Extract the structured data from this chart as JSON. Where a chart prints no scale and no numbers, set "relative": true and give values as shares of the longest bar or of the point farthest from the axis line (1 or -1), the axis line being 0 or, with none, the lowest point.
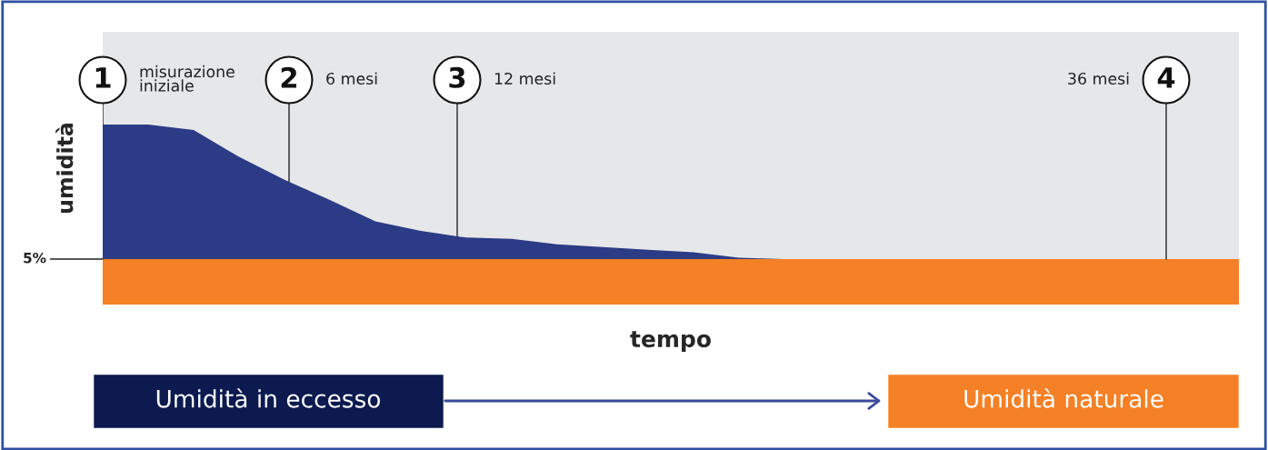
{
  "chart_data": {
    "type": "area",
    "relative": true,
    "xlabel": "tempo",
    "ylabel": "umidità",
    "categories": [
      null,
      null,
      null,
      null,
      null,
      null,
      null,
      null,
      null,
      null,
      null,
      null,
      null,
      null,
      null,
      null,
      null,
      null,
      null,
      null,
      null,
      null,
      null,
      null,
      null,
      null
    ],
    "series": [
      {
        "color": "#2b3b85",
        "values": [
          1.0,
          1.0,
          0.96,
          0.76,
          0.59,
          0.44,
          0.28,
          0.21,
          0.16,
          0.15,
          0.11,
          0.09,
          0.07,
          0.05,
          0.01,
          0,
          0,
          0,
          0,
          0,
          0,
          0,
          0,
          0,
          0,
          0
        ]
      }
    ],
    "bands": [
      {
        "axis": "y",
        "from": -0.34,
        "to": 0,
        "color": "#f58025"
      }
    ],
    "annotations": [
      "1",
      "misurazione\niniziale",
      "2",
      "6 mesi",
      "3",
      "12 mesi",
      "4",
      "36 mesi",
      "Umidità in eccesso",
      "Umidità naturale",
      "5%"
    ],
    "grid": false,
    "legend": false
  }
}
